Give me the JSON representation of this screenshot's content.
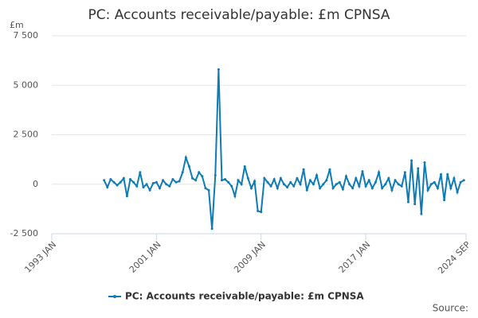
{
  "chart_data": {
    "type": "line",
    "title": "PC: Accounts receivable/payable: £m CPNSA",
    "y_unit": "£m",
    "source_label": "Source:",
    "x": [
      "1997 JAN",
      "1997 APR",
      "1997 JUL",
      "1997 OCT",
      "1998 JAN",
      "1998 APR",
      "1998 JUL",
      "1998 OCT",
      "1999 JAN",
      "1999 APR",
      "1999 JUL",
      "1999 OCT",
      "2000 JAN",
      "2000 APR",
      "2000 JUL",
      "2000 OCT",
      "2001 JAN",
      "2001 APR",
      "2001 JUL",
      "2001 OCT",
      "2002 JAN",
      "2002 APR",
      "2002 JUL",
      "2002 OCT",
      "2003 JAN",
      "2003 APR",
      "2003 JUL",
      "2003 OCT",
      "2004 JAN",
      "2004 APR",
      "2004 JUL",
      "2004 OCT",
      "2005 JAN",
      "2005 APR",
      "2005 JUL",
      "2005 OCT",
      "2006 JAN",
      "2006 APR",
      "2006 JUL",
      "2006 OCT",
      "2007 JAN",
      "2007 APR",
      "2007 JUL",
      "2007 OCT",
      "2008 JAN",
      "2008 APR",
      "2008 JUL",
      "2008 OCT",
      "2009 JAN",
      "2009 APR",
      "2009 JUL",
      "2009 OCT",
      "2010 JAN",
      "2010 APR",
      "2010 JUL",
      "2010 OCT",
      "2011 JAN",
      "2011 APR",
      "2011 JUL",
      "2011 OCT",
      "2012 JAN",
      "2012 APR",
      "2012 JUL",
      "2012 OCT",
      "2013 JAN",
      "2013 APR",
      "2013 JUL",
      "2013 OCT",
      "2014 JAN",
      "2014 APR",
      "2014 JUL",
      "2014 OCT",
      "2015 JAN",
      "2015 APR",
      "2015 JUL",
      "2015 OCT",
      "2016 JAN",
      "2016 APR",
      "2016 JUL",
      "2016 OCT",
      "2017 JAN",
      "2017 APR",
      "2017 JUL",
      "2017 OCT",
      "2018 JAN",
      "2018 APR",
      "2018 JUL",
      "2018 OCT",
      "2019 JAN",
      "2019 APR",
      "2019 JUL",
      "2019 OCT",
      "2020 JAN",
      "2020 APR",
      "2020 JUL",
      "2020 OCT",
      "2021 JAN",
      "2021 APR",
      "2021 JUL",
      "2021 OCT",
      "2022 JAN",
      "2022 APR",
      "2022 JUL",
      "2022 OCT",
      "2023 JAN",
      "2023 APR",
      "2023 JUL",
      "2023 OCT",
      "2024 JAN",
      "2024 APR",
      "2024 JUL"
    ],
    "series": [
      {
        "name": "PC: Accounts receivable/payable: £m CPNSA",
        "color": "#0e7bb5",
        "values": [
          200,
          -150,
          250,
          100,
          -50,
          100,
          300,
          -600,
          250,
          100,
          -100,
          600,
          -150,
          0,
          -300,
          50,
          100,
          -200,
          200,
          0,
          -100,
          250,
          100,
          150,
          600,
          1350,
          900,
          300,
          200,
          600,
          400,
          -200,
          -300,
          -2250,
          450,
          5800,
          200,
          250,
          100,
          -100,
          -600,
          200,
          0,
          900,
          300,
          -200,
          150,
          -1350,
          -1400,
          300,
          100,
          -100,
          250,
          -200,
          300,
          0,
          -150,
          100,
          -100,
          300,
          0,
          750,
          -300,
          200,
          0,
          450,
          -200,
          0,
          200,
          750,
          -200,
          0,
          100,
          -250,
          400,
          0,
          -200,
          300,
          -100,
          650,
          -100,
          200,
          -200,
          100,
          600,
          -200,
          0,
          300,
          -300,
          200,
          0,
          -100,
          600,
          -900,
          1200,
          -1000,
          800,
          -1500,
          1100,
          -300,
          0,
          100,
          -200,
          500,
          -800,
          500,
          -200,
          300,
          -400,
          100,
          200
        ]
      }
    ],
    "xlim": [
      "1993 JAN",
      "2024 SEP"
    ],
    "xticks": [
      "1993 JAN",
      "2001 JAN",
      "2009 JAN",
      "2017 JAN",
      "2024 SEP"
    ],
    "ylim": [
      -2500,
      7500
    ],
    "yticks": [
      {
        "value": -2500,
        "label": "-2 500"
      },
      0,
      {
        "value": 2500,
        "label": "2 500"
      },
      {
        "value": 5000,
        "label": "5 000"
      },
      {
        "value": 7500,
        "label": "7 500"
      }
    ],
    "grid": true
  }
}
